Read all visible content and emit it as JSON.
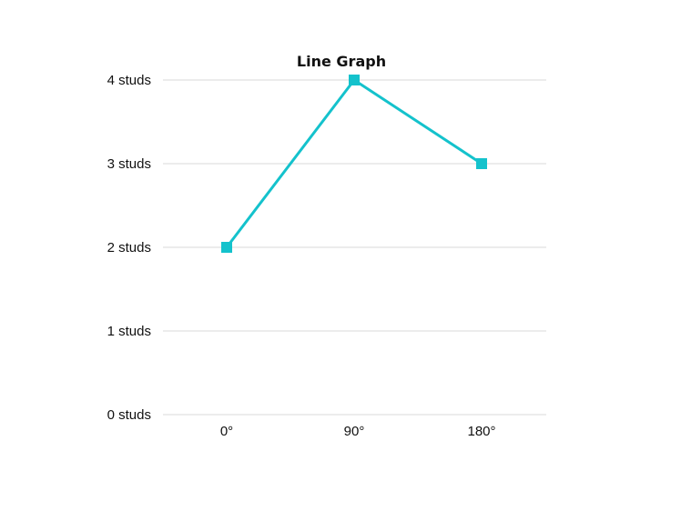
{
  "chart_data": {
    "type": "line",
    "title": "Line Graph",
    "categories": [
      "0°",
      "90°",
      "180°"
    ],
    "series": [
      {
        "values": [
          2,
          4,
          3
        ],
        "color": "#14c2cc",
        "marker": "square"
      }
    ],
    "xlabel": "",
    "ylabel": "",
    "ylim": [
      0,
      4
    ],
    "y_ticks": [
      0,
      1,
      2,
      3,
      4
    ],
    "y_tick_labels": [
      "0 studs",
      "1 studs",
      "2 studs",
      "3 studs",
      "4 studs"
    ],
    "grid": true,
    "legend": false,
    "colors": {
      "gridline": "#d9d9d9",
      "text": "#111111",
      "background": "#ffffff"
    }
  }
}
